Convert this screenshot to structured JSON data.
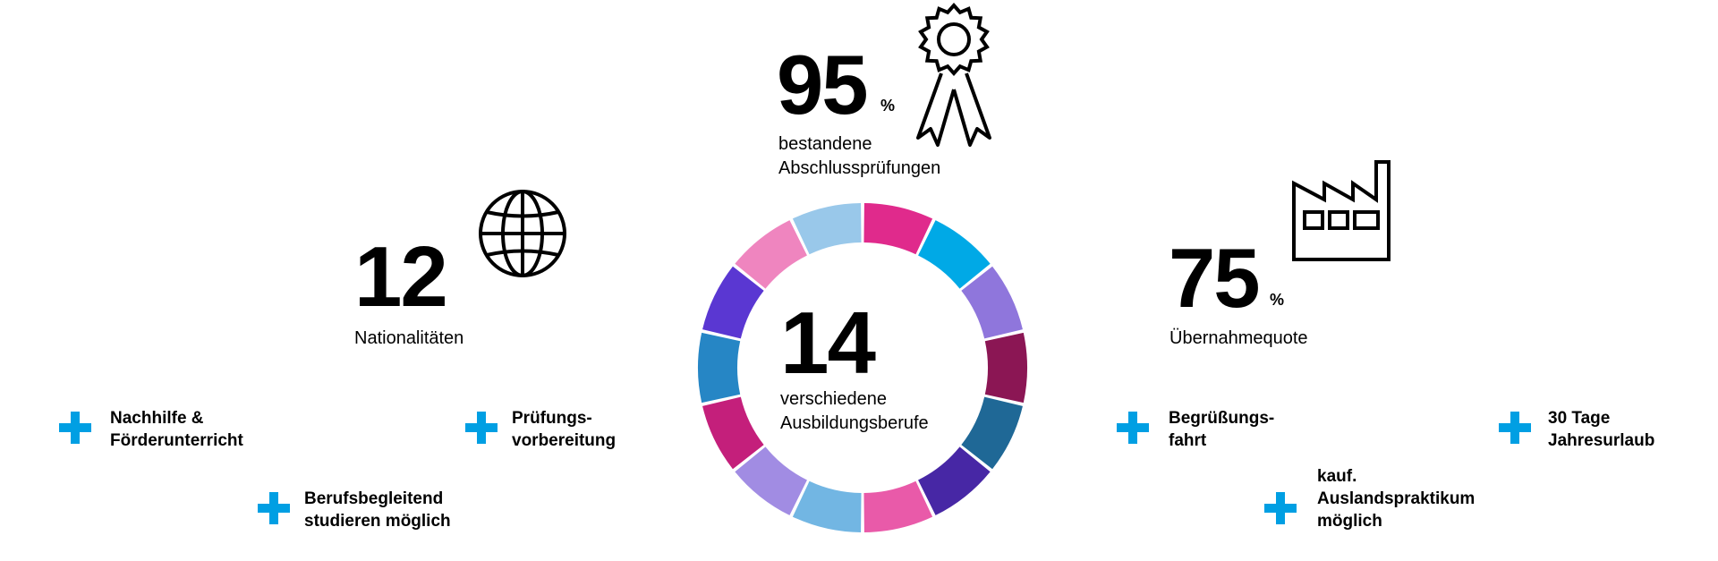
{
  "stats": {
    "pruefungen": {
      "value": "95",
      "unit": "%",
      "label_line1": "bestandene",
      "label_line2": "Abschlussprüfungen",
      "icon": "award-ribbon-icon"
    },
    "nationen": {
      "value": "12",
      "label": "Nationalitäten",
      "icon": "globe-icon"
    },
    "berufe": {
      "value": "14",
      "label_line1": "verschiedene",
      "label_line2": "Ausbildungsberufe"
    },
    "uebernahme": {
      "value": "75",
      "unit": "%",
      "label": "Übernahmequote",
      "icon": "factory-icon"
    }
  },
  "ring_colors": [
    "#e02a8c",
    "#00a9e6",
    "#8f76dc",
    "#8b1654",
    "#1f6896",
    "#4727a5",
    "#e95aa9",
    "#72b6e3",
    "#a18ce3",
    "#c41f7b",
    "#2686c5",
    "#5a37d2",
    "#ef85bf",
    "#99c8ea"
  ],
  "features": {
    "nachhilfe": "Nachhilfe &\nFörderunterricht",
    "pruefungsvorbereitung": "Prüfungs-\nvorbereitung",
    "studieren": "Berufsbegleitend\nstudieren möglich",
    "begruessung": "Begrüßungs-\nfahrt",
    "urlaub": "30 Tage\nJahresurlaub",
    "auslandspraktikum": "kauf.\nAuslandspraktikum\nmöglich"
  }
}
